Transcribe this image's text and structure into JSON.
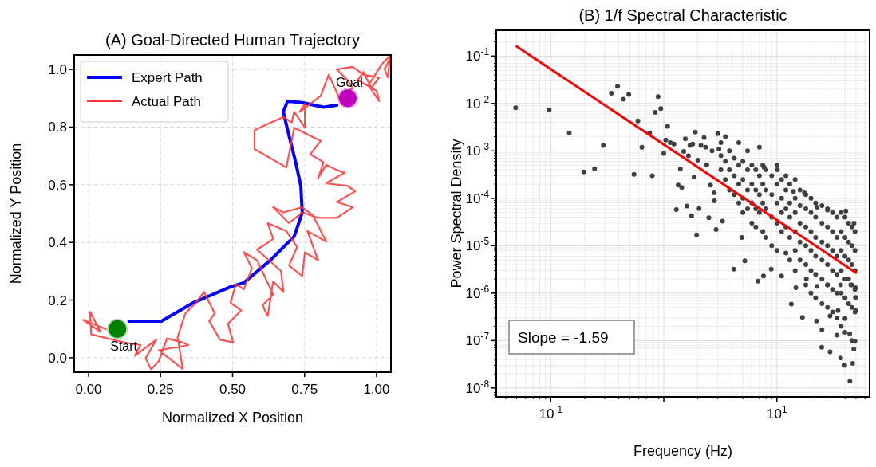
{
  "chart_data": [
    {
      "type": "line",
      "title": "(A) Goal-Directed Human Trajectory",
      "xlabel": "Normalized X Position",
      "ylabel": "Normalized Y Position",
      "xlim": [
        -0.05,
        1.05
      ],
      "ylim": [
        -0.05,
        1.05
      ],
      "xticks": [
        {
          "value": 0,
          "label": "0.00"
        },
        {
          "value": 0.25,
          "label": "0.25"
        },
        {
          "value": 0.5,
          "label": "0.50"
        },
        {
          "value": 0.75,
          "label": "0.75"
        },
        {
          "value": 1,
          "label": "1.00"
        }
      ],
      "yticks": [
        {
          "value": 0,
          "label": "0.0"
        },
        0.2,
        0.4,
        0.6,
        0.8,
        {
          "value": 1,
          "label": "1.0"
        }
      ],
      "grid": true,
      "legend": "top left",
      "series": [
        {
          "name": "Expert Path",
          "color": "#0000ff",
          "x": [
            0.14,
            0.253,
            0.364,
            0.493,
            0.539,
            0.631,
            0.714,
            0.742,
            0.737,
            0.719,
            0.696,
            0.676,
            0.691,
            0.742,
            0.816,
            0.862
          ],
          "values": [
            0.127,
            0.127,
            0.191,
            0.246,
            0.26,
            0.338,
            0.421,
            0.504,
            0.596,
            0.678,
            0.77,
            0.853,
            0.89,
            0.885,
            0.869,
            0.876
          ]
        },
        {
          "name": "Actual Path",
          "color": "#ff3333",
          "x": [
            0.06,
            -0.018,
            0.041,
            0.005,
            0.009,
            0.124,
            0.18,
            0.161,
            0.235,
            0.198,
            0.217,
            0.244,
            0.272,
            0.327,
            0.346,
            0.244,
            0.327,
            0.309,
            0.336,
            0.373,
            0.401,
            0.438,
            0.419,
            0.456,
            0.502,
            0.484,
            0.53,
            0.493,
            0.512,
            0.539,
            0.567,
            0.539,
            0.585,
            0.641,
            0.604,
            0.622,
            0.641,
            0.677,
            0.668,
            0.585,
            0.641,
            0.622,
            0.687,
            0.724,
            0.696,
            0.742,
            0.751,
            0.797,
            0.76,
            0.825,
            0.779,
            0.742,
            0.677,
            0.641,
            0.696,
            0.742,
            0.797,
            0.862,
            0.917,
            0.862,
            0.926,
            0.899,
            0.825,
            0.889,
            0.862,
            0.825,
            0.797,
            0.816,
            0.77,
            0.806,
            0.751,
            0.714,
            0.687,
            0.576,
            0.576,
            0.613,
            0.677,
            0.705,
            0.714,
            0.751,
            0.751,
            0.733,
            0.806,
            0.834,
            0.871,
            0.917,
            0.899,
            0.862,
            0.917,
            0.954,
            1.009,
            0.982,
            0.954,
            0.935,
            1.0,
            1.009,
            0.972,
            1.018,
            1.046,
            1.04,
            1.028,
            1.046
          ],
          "values": [
            0.099,
            0.131,
            0.09,
            0.159,
            0.081,
            0.053,
            0.044,
            0.007,
            0.063,
            -0.002,
            -0.04,
            -0.011,
            0.067,
            0.053,
            0.044,
            0.026,
            -0.039,
            0.072,
            0.154,
            0.191,
            0.228,
            0.154,
            0.127,
            0.063,
            0.053,
            0.118,
            0.164,
            0.191,
            0.256,
            0.237,
            0.311,
            0.366,
            0.338,
            0.219,
            0.182,
            0.145,
            0.265,
            0.228,
            0.301,
            0.375,
            0.412,
            0.467,
            0.439,
            0.384,
            0.32,
            0.283,
            0.366,
            0.338,
            0.439,
            0.403,
            0.494,
            0.522,
            0.504,
            0.522,
            0.467,
            0.504,
            0.485,
            0.485,
            0.522,
            0.54,
            0.577,
            0.596,
            0.605,
            0.642,
            0.651,
            0.669,
            0.623,
            0.678,
            0.706,
            0.752,
            0.779,
            0.798,
            0.66,
            0.724,
            0.789,
            0.807,
            0.835,
            0.816,
            0.853,
            0.798,
            0.881,
            0.853,
            0.908,
            0.982,
            0.899,
            0.936,
            0.963,
            1.0,
            1.009,
            0.982,
            0.972,
            0.936,
            0.991,
            0.963,
            0.926,
            0.89,
            0.945,
            1.018,
            1.046,
            0.972,
            1.0,
            1.037
          ]
        },
        {
          "type": "scatter",
          "marker": "circle",
          "color": "#008000",
          "x": [
            0.1
          ],
          "values": [
            0.1
          ]
        },
        {
          "type": "scatter",
          "marker": "circle",
          "color": "#bf00bf",
          "x": [
            0.9
          ],
          "values": [
            0.9
          ]
        }
      ],
      "annotations": [
        {
          "text": "Start",
          "x": 0.1,
          "y": 0.1
        },
        {
          "text": "Goal",
          "x": 0.9,
          "y": 0.9
        }
      ]
    },
    {
      "type": "scatter",
      "title": "(B) 1/f Spectral Characteristic",
      "xlabel": "Frequency (Hz)",
      "ylabel": "Power Spectral Density",
      "log": "xy",
      "xlim": [
        0.033,
        66
      ],
      "ylim": [
        6.5e-09,
        0.35
      ],
      "xticks": [
        {
          "value": 0.1,
          "label": "10$^{-1}$"
        },
        {
          "value": 1,
          "label": null
        },
        {
          "value": 10,
          "label": "10$^{1}$"
        }
      ],
      "yticks": [
        {
          "value": 1e-08,
          "label": "10$^{-8}$"
        },
        {
          "value": 1e-07,
          "label": "10$^{-7}$"
        },
        {
          "value": 1e-06,
          "label": "10$^{-6}$"
        },
        {
          "value": 1e-05,
          "label": "10$^{-5}$"
        },
        {
          "value": 0.0001,
          "label": "10$^{-4}$"
        },
        {
          "value": 0.001,
          "label": "10$^{-3}$"
        },
        {
          "value": 0.01,
          "label": "10$^{-2}$"
        },
        {
          "value": 0.1,
          "label": "10$^{-1}$"
        }
      ],
      "grid": true,
      "series": [
        {
          "color": "#404040",
          "marker": "circle",
          "x": [
            0.049,
            0.097,
            0.146,
            0.196,
            0.244,
            0.292,
            0.344,
            0.39,
            0.44,
            0.49,
            0.545,
            0.59,
            0.64,
            0.75,
            0.79,
            0.84,
            0.89,
            0.94,
            1.0,
            1.04,
            1.08,
            1.14,
            1.23,
            1.29,
            1.34,
            1.4,
            1.44,
            1.5,
            1.55,
            1.6,
            1.65,
            1.7,
            1.76,
            1.8,
            1.85,
            1.9,
            1.95,
            2.0,
            2.05,
            2.13,
            2.27,
            2.34,
            2.4,
            2.5,
            2.59,
            2.67,
            2.79,
            2.8,
            2.9,
            3.0,
            3.07,
            3.3,
            4.15,
            4.9,
            5.2,
            6.8,
            7.6,
            8.9,
            11,
            13.4,
            16.8,
            22.4,
            24.9,
            29.5,
            36.6,
            39.7,
            44.2,
            46.7,
            47.9,
            48.9,
            44,
            33.9,
            25,
            29.5,
            34.7,
            40,
            49.5,
            49.5,
            14.7,
            18.2,
            22.6,
            28,
            36.6,
            45,
            49.5,
            40.7,
            48,
            28,
            22.6,
            17.5,
            14,
            10.1,
            7.7,
            3.2,
            3.2,
            3.2,
            3.5,
            3.5,
            3.5,
            3.8,
            3.8,
            3.8,
            4.2,
            4.2,
            4.2,
            4.6,
            4.6,
            4.6,
            4.6,
            5,
            5,
            5,
            5,
            5.5,
            5.5,
            5.5,
            5.5,
            6,
            6,
            6,
            6,
            6.5,
            6.5,
            6.5,
            6.5,
            7,
            7,
            7,
            7,
            7.5,
            7.5,
            7.5,
            7.5,
            8,
            8,
            8,
            8,
            9,
            9,
            9,
            9,
            10,
            10,
            10,
            10,
            10,
            11,
            11,
            11,
            11,
            12,
            12,
            12,
            12,
            12,
            13,
            13,
            13,
            13,
            13,
            14.5,
            14.5,
            14.5,
            14.5,
            14.5,
            14.5,
            16,
            16,
            16,
            16,
            16,
            18,
            18,
            18,
            18,
            18,
            18,
            20,
            20,
            20,
            20,
            20,
            20,
            22,
            22,
            22,
            22,
            22,
            22,
            25,
            25,
            25,
            25,
            25,
            25,
            28,
            28,
            28,
            28,
            28,
            28,
            31,
            31,
            31,
            31,
            31,
            31,
            34,
            34,
            34,
            34,
            34,
            34,
            37,
            37,
            37,
            37,
            37,
            37,
            40,
            40,
            40,
            40,
            40,
            40,
            43,
            43,
            43,
            43,
            43,
            46,
            46,
            46,
            46,
            46,
            46,
            49,
            49,
            49,
            49,
            49
          ],
          "values": [
            0.0081,
            0.0074,
            0.0024,
            0.00036,
            0.00042,
            0.0013,
            0.0165,
            0.023,
            0.0123,
            0.0156,
            0.00032,
            0.0043,
            0.0012,
            0.0024,
            0.0003,
            0.0065,
            0.014,
            0.0078,
            0.00089,
            0.0017,
            0.0033,
            0.0015,
            0.0014,
            5.8e-05,
            0.00019,
            0.00042,
            0.00017,
            0.00098,
            0.0018,
            6.9e-05,
            0.00079,
            0.0013,
            4.3e-05,
            0.0014,
            0.00028,
            0.0025,
            1.7e-05,
            0.00064,
            6.1e-05,
            0.0013,
            0.0019,
            0.0012,
            0.00051,
            3.9e-05,
            0.00019,
            0.001,
            0.00013,
            8.9e-05,
            2.2e-05,
            0.0023,
            0.0011,
            3.3e-05,
            3.2e-06,
            1.5e-05,
            4.8e-06,
            1.8e-06,
            2.3e-06,
            3.2e-06,
            2.3e-06,
            5.9e-07,
            3.1e-07,
            2.6e-07,
            7.2e-08,
            5.8e-08,
            4.3e-08,
            3e-08,
            1.4e-08,
            3.3e-08,
            6.6e-08,
            9.7e-08,
            1.4e-07,
            1.3e-07,
            1.7e-07,
            3.3e-07,
            4.3e-07,
            2.9e-07,
            4.3e-07,
            8.1e-07,
            1.3e-06,
            2e-06,
            1.4e-06,
            1.5e-06,
            1.5e-06,
            1.5e-06,
            1.3e-06,
            5.4e-05,
            3e-05,
            5.7e-05,
            6.5e-05,
            0.00013,
            0.00014,
            0.0004,
            0.00045,
            0.0015,
            0.0008,
            0.0004,
            0.002,
            0.0006,
            0.00025,
            0.001,
            0.0004,
            0.00015,
            0.0007,
            0.0003,
            0.00012,
            0.0015,
            0.0005,
            0.0002,
            8e-05,
            0.0006,
            0.00025,
            0.0001,
            5e-05,
            0.001,
            0.0004,
            0.00015,
            6e-05,
            0.0005,
            0.0002,
            8e-05,
            3e-05,
            0.0004,
            0.00015,
            6e-05,
            2.5e-05,
            0.0012,
            0.0003,
            0.00012,
            5e-05,
            0.0005,
            0.0002,
            8e-05,
            2e-05,
            0.0004,
            0.00015,
            6e-05,
            1.5e-05,
            0.0003,
            0.00012,
            4e-05,
            1e-05,
            0.0005,
            0.0002,
            8e-05,
            3e-05,
            8e-06,
            0.00025,
            0.0001,
            5e-05,
            2e-05,
            0.0003,
            0.00015,
            6e-05,
            2.5e-05,
            7e-06,
            0.0002,
            8e-05,
            4e-05,
            1.5e-05,
            5e-06,
            0.00025,
            0.0001,
            5e-05,
            2e-05,
            8e-06,
            3e-06,
            0.00015,
            7e-05,
            3e-05,
            1.2e-05,
            5e-06,
            0.00012,
            6e-05,
            2.5e-05,
            1e-05,
            4e-06,
            1.5e-06,
            0.0001,
            5e-05,
            2e-05,
            8e-06,
            3e-06,
            1e-06,
            8e-05,
            4e-05,
            1.5e-05,
            6e-06,
            2.5e-06,
            8e-07,
            7e-05,
            3e-05,
            1.2e-05,
            5e-06,
            2e-06,
            6e-07,
            6e-05,
            2.5e-05,
            1e-05,
            4e-06,
            1.5e-06,
            5e-07,
            5e-05,
            2e-05,
            8e-06,
            3e-06,
            1.2e-06,
            4e-07,
            4e-05,
            1.5e-05,
            6e-06,
            2.5e-06,
            1e-06,
            3e-07,
            5e-05,
            2e-05,
            8e-06,
            3e-06,
            1e-06,
            2e-07,
            4e-05,
            1.5e-05,
            6e-06,
            2e-06,
            8e-07,
            1.5e-07,
            3e-05,
            1.2e-05,
            5e-06,
            2e-06,
            6e-07,
            2.5e-05,
            1e-05,
            4e-06,
            1.5e-06,
            5e-07,
            1e-07,
            2e-05,
            8e-06,
            3e-06,
            1.2e-06,
            4e-07
          ]
        },
        {
          "type": "line",
          "color": "#ff0000",
          "x": [
            0.05,
            50
          ],
          "values": [
            0.16,
            2.7e-06
          ]
        }
      ],
      "annotations": [
        "Slope = -1.59"
      ]
    }
  ]
}
